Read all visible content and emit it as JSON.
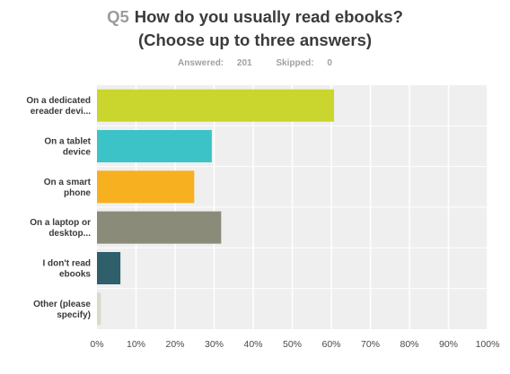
{
  "header": {
    "qnum": "Q5",
    "question_line1": "How do you usually read ebooks?",
    "question_line2": "(Choose up to three answers)"
  },
  "stats": {
    "answered_label": "Answered:",
    "answered_value": "201",
    "skipped_label": "Skipped:",
    "skipped_value": "0"
  },
  "chart_data": {
    "type": "bar",
    "orientation": "horizontal",
    "categories": [
      [
        "On a dedicated",
        "ereader devi..."
      ],
      [
        "On a tablet",
        "device"
      ],
      [
        "On a smart",
        "phone"
      ],
      [
        "On a laptop or",
        "desktop..."
      ],
      [
        "I don't read",
        "ebooks"
      ],
      [
        "Other (please",
        "specify)"
      ]
    ],
    "values": [
      60.7,
      29.4,
      24.9,
      31.8,
      6.0,
      1.0
    ],
    "colors": [
      "#cad52d",
      "#3cc3c8",
      "#f6b020",
      "#8b8b79",
      "#2e5f6b",
      "#d9d9cc"
    ],
    "xlim": [
      0,
      100
    ],
    "x_ticks": [
      "0%",
      "10%",
      "20%",
      "30%",
      "40%",
      "50%",
      "60%",
      "70%",
      "80%",
      "90%",
      "100%"
    ],
    "grid": true
  }
}
